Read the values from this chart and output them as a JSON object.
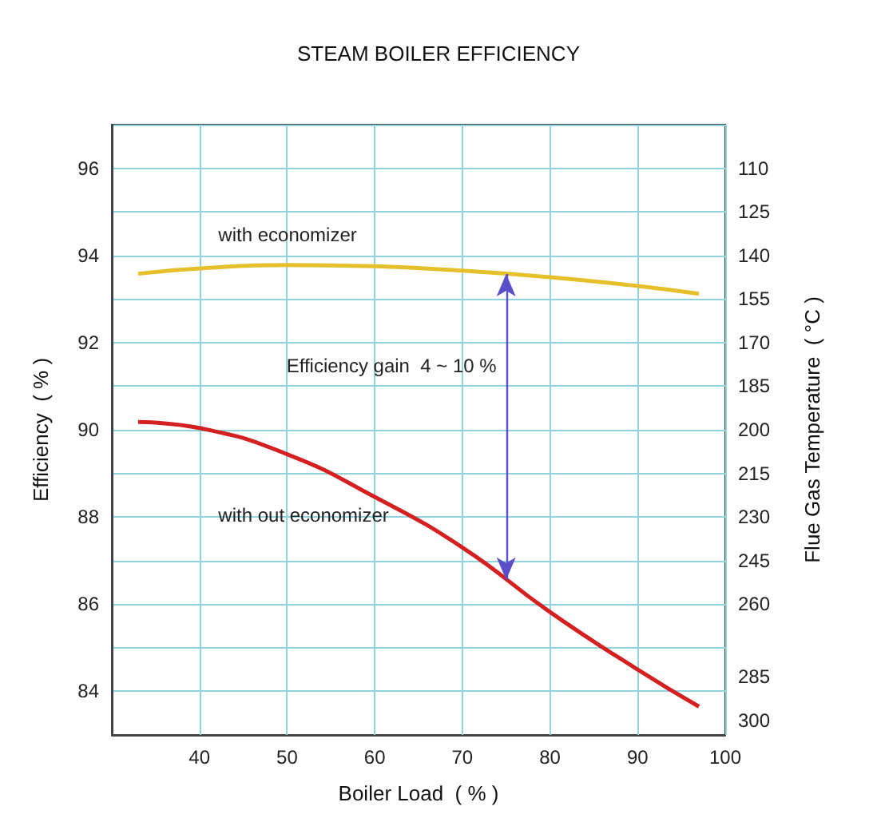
{
  "chart_data": {
    "type": "line",
    "title": "STEAM BOILER EFFICIENCY",
    "xlabel": "Boiler Load  ( % )",
    "ylabel": "Efficiency  ( % )",
    "y2label": "Flue Gas Temperature  ( °C )",
    "x": [
      33,
      40,
      50,
      60,
      70,
      80,
      90,
      97
    ],
    "series": [
      {
        "name": "with economizer",
        "color": "#e6c02a",
        "values": [
          93.58,
          93.7,
          93.78,
          93.75,
          93.65,
          93.5,
          93.3,
          93.12
        ]
      },
      {
        "name": "with out economizer",
        "color": "#d42020",
        "values": [
          90.18,
          90.04,
          89.44,
          88.46,
          87.3,
          85.82,
          84.5,
          83.65
        ]
      }
    ],
    "annotations": [
      "Efficiency gain  4 ~ 10 %"
    ],
    "xlim": [
      30,
      100
    ],
    "xticks": [
      40,
      50,
      60,
      70,
      80,
      90,
      100
    ],
    "ylim": [
      83,
      97
    ],
    "yticks": [
      {
        "value": 83,
        "label": null
      },
      84,
      {
        "value": 85,
        "label": null
      },
      86,
      {
        "value": 87,
        "label": null
      },
      88,
      {
        "value": 89,
        "label": null
      },
      90,
      {
        "value": 91,
        "label": null
      },
      92,
      {
        "value": 93,
        "label": null
      },
      94,
      {
        "value": 95,
        "label": null
      },
      96,
      {
        "value": 97,
        "label": null
      }
    ],
    "y2lim": [
      305,
      95
    ],
    "y2ticks": [
      110,
      125,
      140,
      155,
      170,
      185,
      200,
      215,
      230,
      245,
      260,
      285,
      300
    ],
    "grid": true,
    "legend": false,
    "marker": "none",
    "line_style": "solid"
  }
}
